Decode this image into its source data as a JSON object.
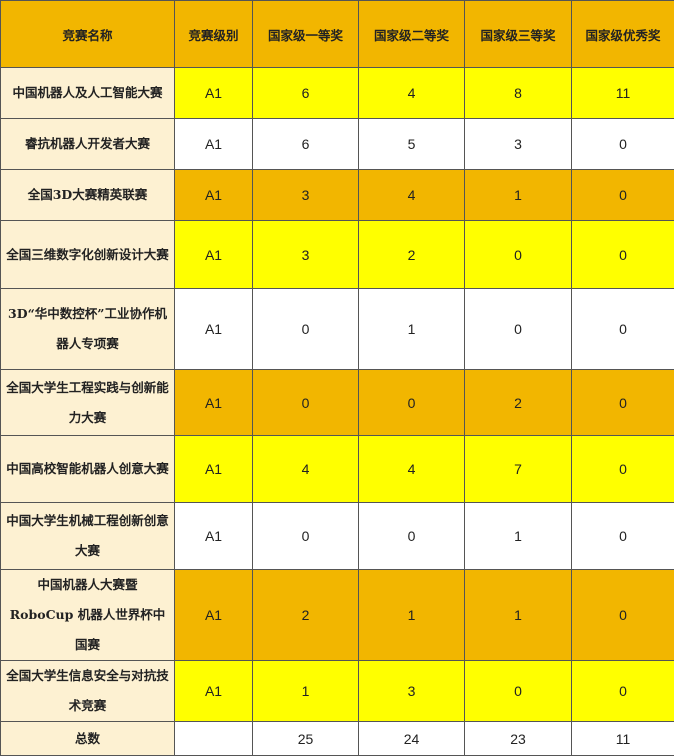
{
  "headers": [
    "竞赛名称",
    "竞赛级别",
    "国家级一等奖",
    "国家级二等奖",
    "国家级三等奖",
    "国家级优秀奖"
  ],
  "rows": [
    {
      "name": "中国机器人及人工智能大赛",
      "level": "A1",
      "first": "6",
      "second": "4",
      "third": "8",
      "excellent": "11",
      "color": "yellow"
    },
    {
      "name": "睿抗机器人开发者大赛",
      "level": "A1",
      "first": "6",
      "second": "5",
      "third": "3",
      "excellent": "0",
      "color": "white"
    },
    {
      "name": "全国3D大赛精英联赛",
      "level": "A1",
      "first": "3",
      "second": "4",
      "third": "1",
      "excellent": "0",
      "color": "orange"
    },
    {
      "name": "全国三维数字化创新设计大赛",
      "level": "A1",
      "first": "3",
      "second": "2",
      "third": "0",
      "excellent": "0",
      "color": "yellow"
    },
    {
      "name": "3D“华中数控杯”工业协作机器人专项赛",
      "level": "A1",
      "first": "0",
      "second": "1",
      "third": "0",
      "excellent": "0",
      "color": "white"
    },
    {
      "name": "全国大学生工程实践与创新能力大赛",
      "level": "A1",
      "first": "0",
      "second": "0",
      "third": "2",
      "excellent": "0",
      "color": "orange"
    },
    {
      "name": "中国高校智能机器人创意大赛",
      "level": "A1",
      "first": "4",
      "second": "4",
      "third": "7",
      "excellent": "0",
      "color": "yellow"
    },
    {
      "name": "中国大学生机械工程创新创意大赛",
      "level": "A1",
      "first": "0",
      "second": "0",
      "third": "1",
      "excellent": "0",
      "color": "white"
    },
    {
      "name": "中国机器人大赛暨 RoboCup 机器人世界杯中国赛",
      "level": "A1",
      "first": "2",
      "second": "1",
      "third": "1",
      "excellent": "0",
      "color": "orange"
    },
    {
      "name": "全国大学生信息安全与对抗技术竞赛",
      "level": "A1",
      "first": "1",
      "second": "3",
      "third": "0",
      "excellent": "0",
      "color": "yellow"
    }
  ],
  "total": {
    "label": "总数",
    "level": "",
    "first": "25",
    "second": "24",
    "third": "23",
    "excellent": "11"
  },
  "colors": {
    "header": "#f2b600",
    "yellow": "#ffff00",
    "orange": "#f2b600",
    "name_column": "#fdf1d2"
  }
}
